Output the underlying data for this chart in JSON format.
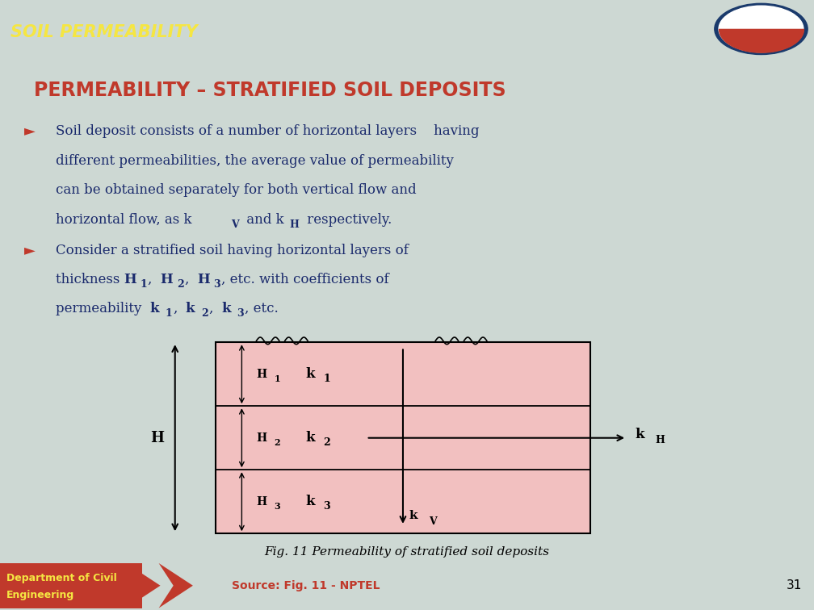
{
  "bg_color": "#cdd8d3",
  "header_color": "#1f6cb0",
  "header_text": "SOIL PERMEABILITY",
  "header_text_color": "#f5e642",
  "title_text": "PERMEABILITY – STRATIFIED SOIL DEPOSITS",
  "title_color": "#c0392b",
  "bullet_color": "#c0392b",
  "text_color": "#1a2a6c",
  "fig_caption": "Fig. 11 Permeability of stratified soil deposits",
  "fig_bg": "#f2c0c0",
  "dept_text_line1": "Department of Civil",
  "dept_text_line2": "Engineering",
  "dept_bg": "#c0392b",
  "source_text": "Source: Fig. 11 - NPTEL",
  "page_num": "31"
}
